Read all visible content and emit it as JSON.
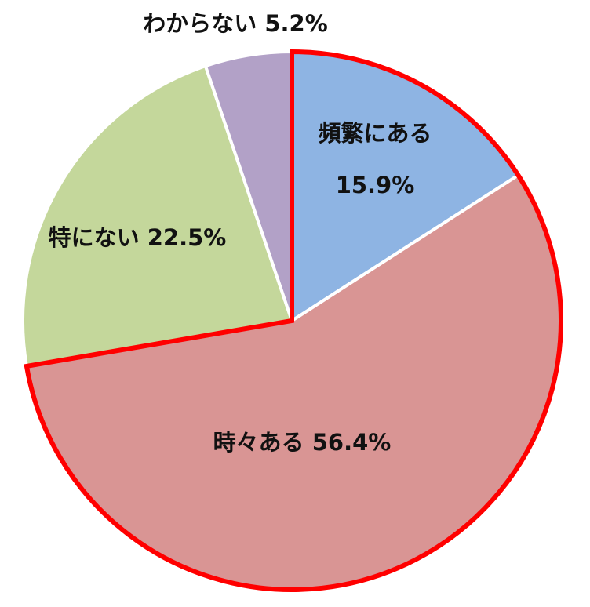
{
  "chart_data": {
    "type": "pie",
    "categories": [
      "頻繁にある",
      "時々ある",
      "特にない",
      "わからない"
    ],
    "values": [
      15.9,
      56.4,
      22.5,
      5.2
    ],
    "value_labels": [
      "15.9%",
      "56.4%",
      "22.5%",
      "5.2%"
    ],
    "colors": [
      "#8eb4e3",
      "#d99594",
      "#c4d79b",
      "#b2a1c7"
    ],
    "highlighted": [
      true,
      true,
      false,
      false
    ],
    "highlight_color": "#ff0000"
  }
}
